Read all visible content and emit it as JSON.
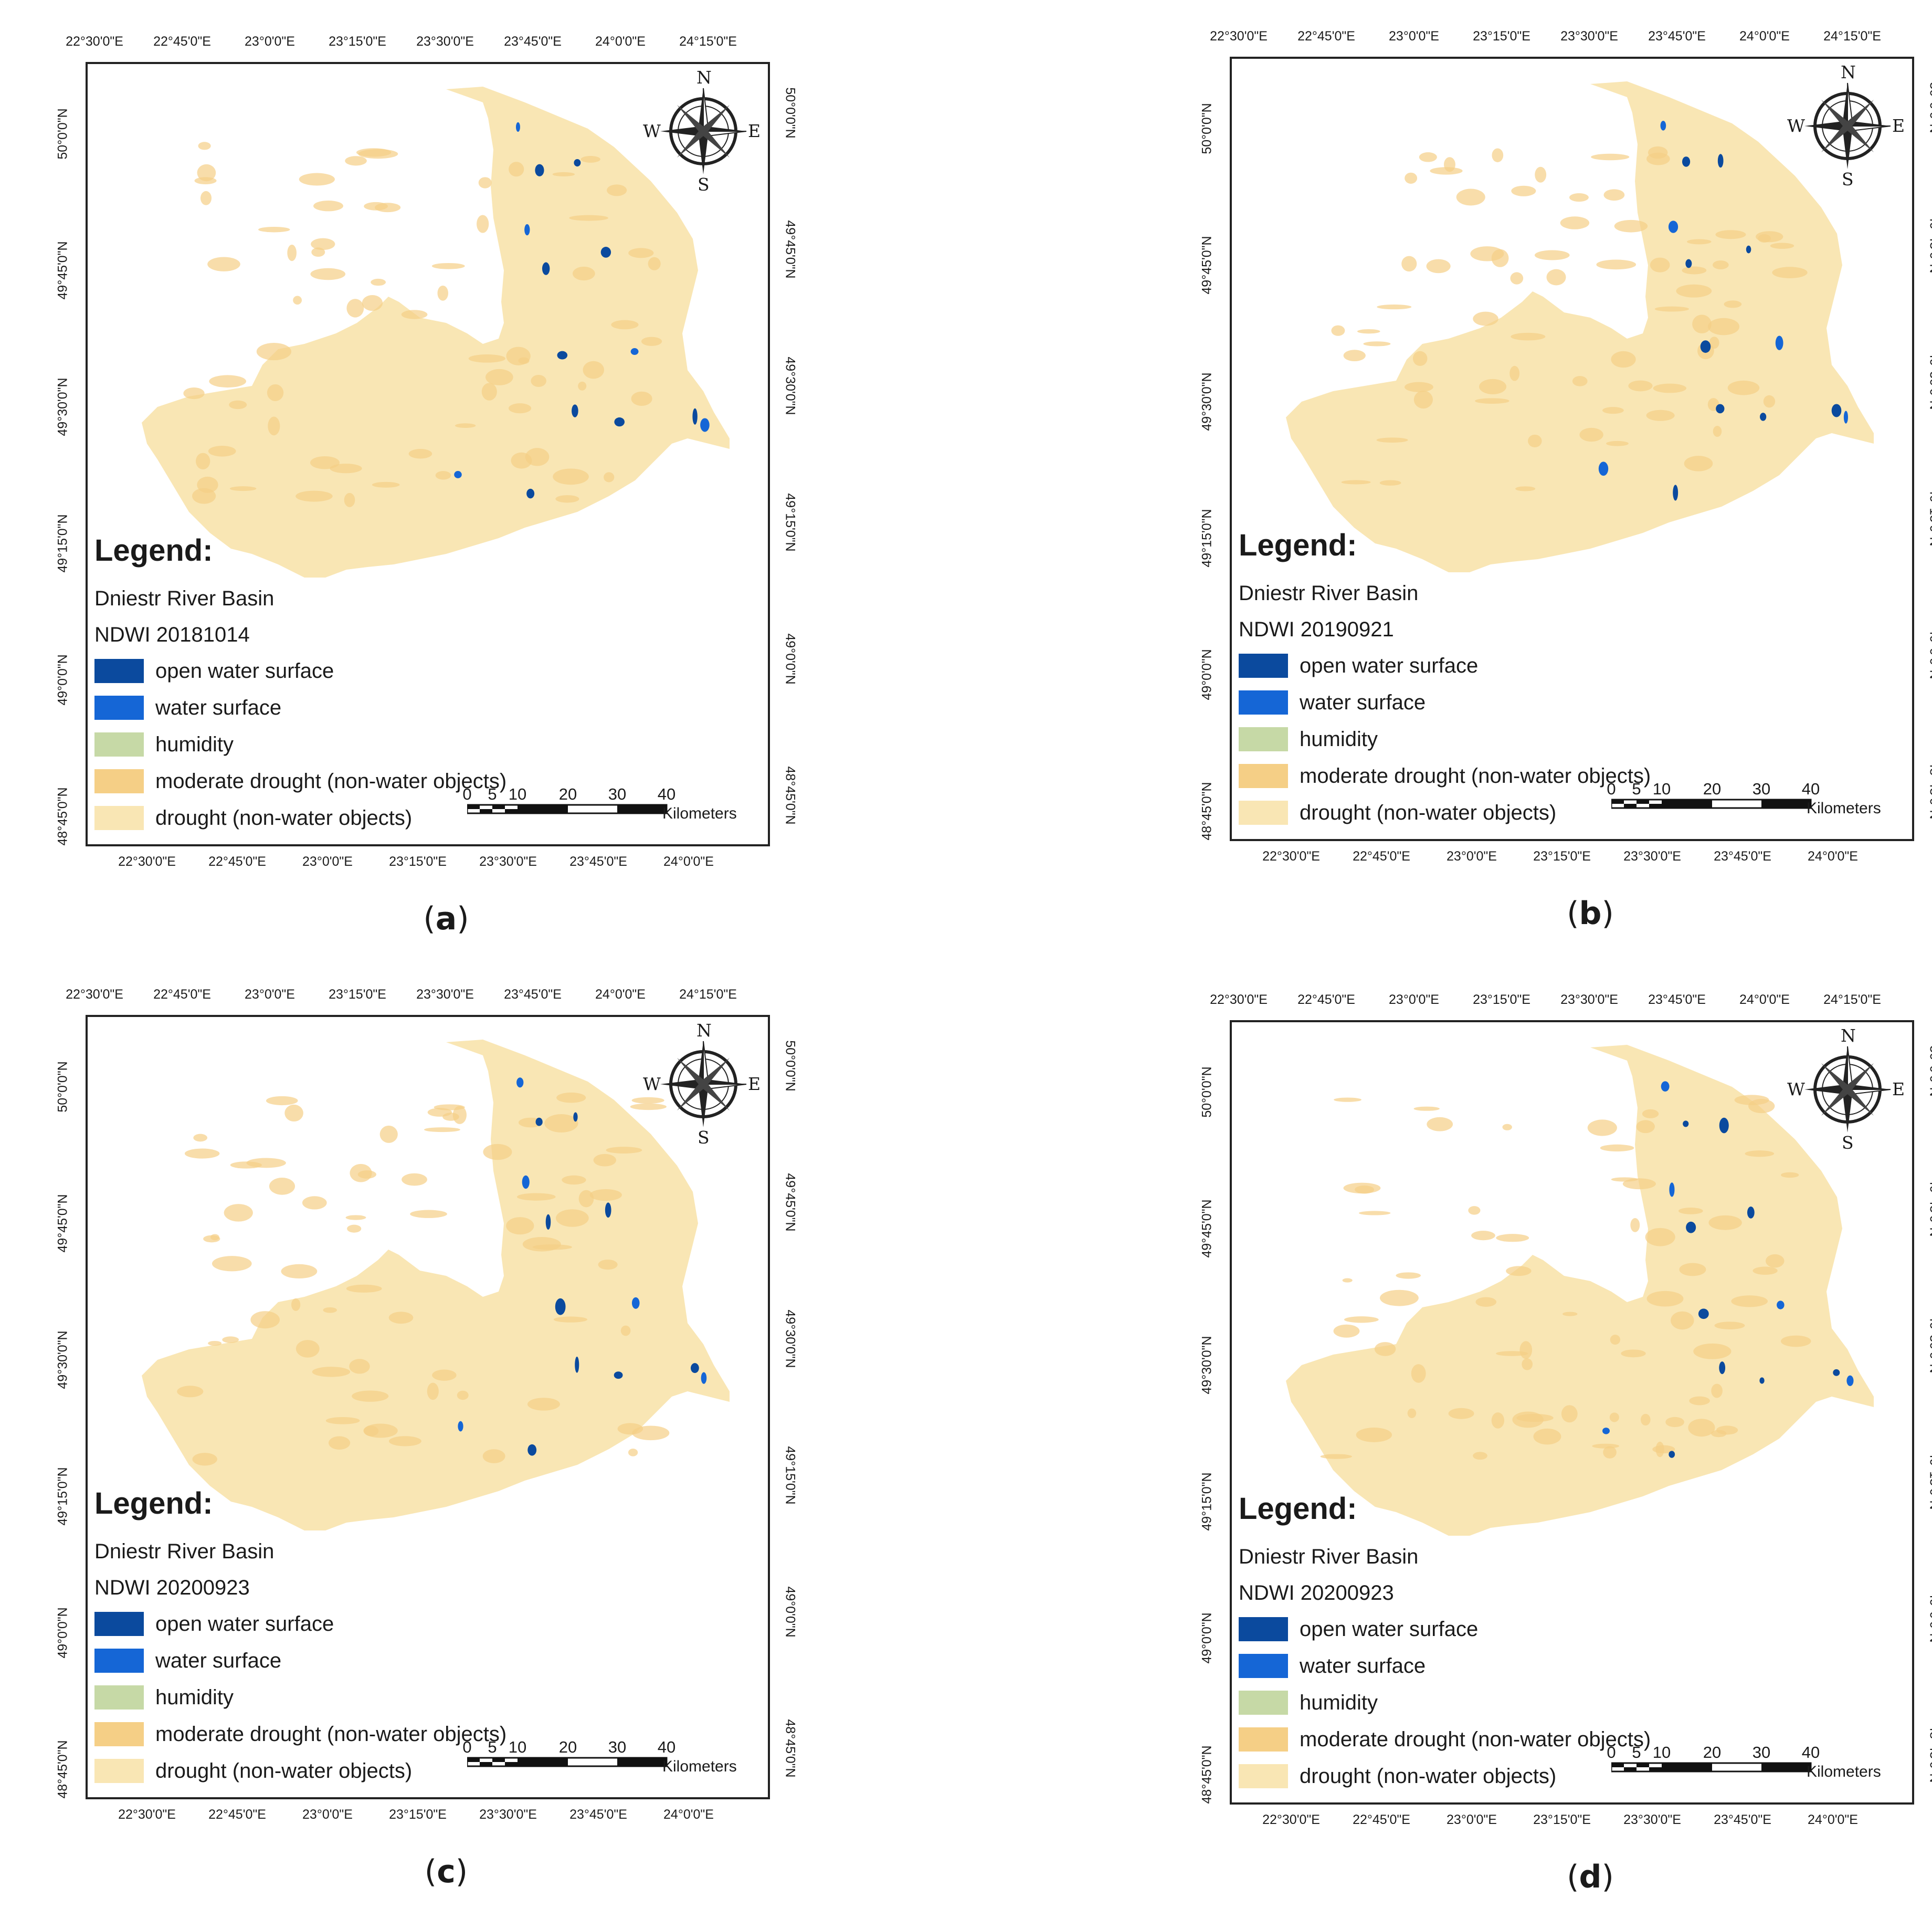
{
  "colors": {
    "open_water": "#0b4a9e",
    "water": "#1566d6",
    "humidity": "#c6d9a6",
    "moderate_drought": "#f5cf86",
    "drought": "#f9e6b4",
    "frame": "#222222"
  },
  "axes": {
    "top_lon": [
      "22°30'0\"E",
      "22°45'0\"E",
      "23°0'0\"E",
      "23°15'0\"E",
      "23°30'0\"E",
      "23°45'0\"E",
      "24°0'0\"E",
      "24°15'0\"E"
    ],
    "bottom_lon": [
      "22°30'0\"E",
      "22°45'0\"E",
      "23°0'0\"E",
      "23°15'0\"E",
      "23°30'0\"E",
      "23°45'0\"E",
      "24°0'0\"E"
    ],
    "left_lat": [
      "50°0'0\"N",
      "49°45'0\"N",
      "49°30'0\"N",
      "49°15'0\"N",
      "49°0'0\"N",
      "48°45'0\"N"
    ],
    "right_lat": [
      "50°0'0\"N",
      "49°45'0\"N",
      "49°30'0\"N",
      "49°15'0\"N",
      "49°0'0\"N",
      "48°45'0\"N"
    ]
  },
  "compass": {
    "n": "N",
    "s": "S",
    "e": "E",
    "w": "W",
    "icon": "compass-rose-icon"
  },
  "scale": {
    "labels": [
      "0",
      "5",
      "10",
      "20",
      "30",
      "40"
    ],
    "unit": "Kilometers"
  },
  "legend": {
    "title": "Legend:",
    "basin": "Dniestr River Basin",
    "items": [
      {
        "label": "open water surface"
      },
      {
        "label": "water surface"
      },
      {
        "label": "humidity"
      },
      {
        "label": "moderate drought (non-water objects)"
      },
      {
        "label": "drought (non-water objects)"
      }
    ]
  },
  "panels": [
    {
      "caption_letter": "a",
      "ndwi_label": "NDWI  20181014"
    },
    {
      "caption_letter": "b",
      "ndwi_label": "NDWI  20190921"
    },
    {
      "caption_letter": "c",
      "ndwi_label": "NDWI  20200923"
    },
    {
      "caption_letter": "d",
      "ndwi_label": "NDWI  20200923"
    }
  ]
}
